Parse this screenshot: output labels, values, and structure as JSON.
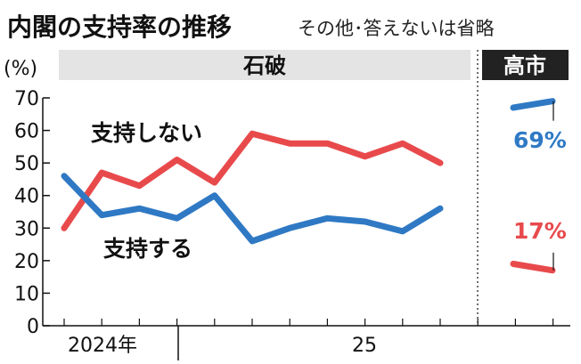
{
  "header": {
    "title": "内閣の支持率の推移",
    "subtitle": "その他･答えないは省略"
  },
  "chart_data": {
    "type": "line",
    "unit_label": "(%)",
    "ylim": [
      0,
      70
    ],
    "yticks": [
      0,
      10,
      20,
      30,
      40,
      50,
      60,
      70
    ],
    "x_tick_labels": [
      "2024年",
      "25"
    ],
    "grid": false,
    "periods": [
      {
        "label": "石破"
      },
      {
        "label": "高市"
      }
    ],
    "series": [
      {
        "name": "支持しない",
        "color": "#e84a4c",
        "values": [
          30,
          47,
          43,
          51,
          44,
          59,
          56,
          56,
          52,
          56,
          50
        ],
        "takaichi_values": [
          19,
          17
        ],
        "takaichi_label": "17%"
      },
      {
        "name": "支持する",
        "color": "#2f79c4",
        "values": [
          46,
          34,
          36,
          33,
          40,
          26,
          30,
          33,
          32,
          29,
          36
        ],
        "takaichi_values": [
          67,
          69
        ],
        "takaichi_label": "69%"
      }
    ]
  }
}
